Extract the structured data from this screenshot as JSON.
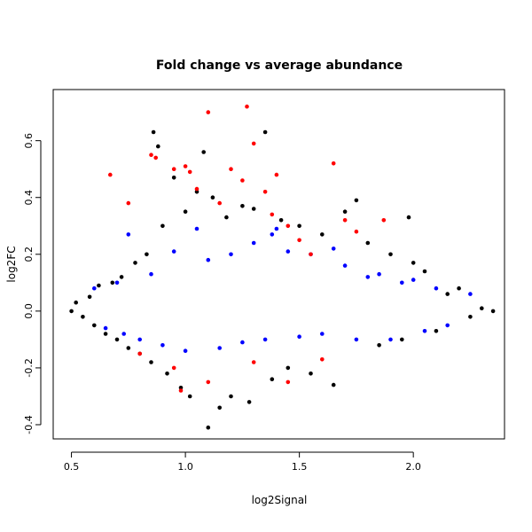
{
  "chart_data": {
    "type": "scatter",
    "title": "Fold change vs average abundance",
    "xlabel": "log2Signal",
    "ylabel": "log2FC",
    "xlim": [
      0.42,
      2.4
    ],
    "ylim": [
      -0.45,
      0.78
    ],
    "xticks": [
      0.5,
      1.0,
      1.5,
      2.0
    ],
    "xtick_labels": [
      "0.5",
      "1.0",
      "1.5",
      "2.0"
    ],
    "yticks": [
      -0.4,
      -0.2,
      0.0,
      0.2,
      0.4,
      0.6
    ],
    "ytick_labels": [
      "-0.4",
      "-0.2",
      "0.0",
      "0.2",
      "0.4",
      "0.6"
    ],
    "grid": false,
    "legend": "none",
    "colors": {
      "black": "#000000",
      "blue": "#0000ff",
      "red": "#ff0000"
    },
    "series": [
      {
        "color": "#000000",
        "points": [
          [
            0.5,
            0.0
          ],
          [
            0.52,
            0.03
          ],
          [
            0.55,
            -0.02
          ],
          [
            0.58,
            0.05
          ],
          [
            0.6,
            -0.05
          ],
          [
            0.62,
            0.09
          ],
          [
            0.65,
            -0.08
          ],
          [
            0.68,
            0.1
          ],
          [
            0.7,
            -0.1
          ],
          [
            0.72,
            0.12
          ],
          [
            0.75,
            -0.13
          ],
          [
            0.78,
            0.17
          ],
          [
            0.8,
            -0.15
          ],
          [
            0.83,
            0.2
          ],
          [
            0.85,
            -0.18
          ],
          [
            0.86,
            0.63
          ],
          [
            0.88,
            0.58
          ],
          [
            0.9,
            0.3
          ],
          [
            0.92,
            -0.22
          ],
          [
            0.95,
            0.47
          ],
          [
            0.98,
            -0.27
          ],
          [
            1.0,
            0.35
          ],
          [
            1.02,
            -0.3
          ],
          [
            1.05,
            0.42
          ],
          [
            1.08,
            0.56
          ],
          [
            1.1,
            -0.41
          ],
          [
            1.12,
            0.4
          ],
          [
            1.15,
            -0.34
          ],
          [
            1.18,
            0.33
          ],
          [
            1.2,
            -0.3
          ],
          [
            1.25,
            0.37
          ],
          [
            1.28,
            -0.32
          ],
          [
            1.3,
            0.36
          ],
          [
            1.35,
            0.63
          ],
          [
            1.38,
            -0.24
          ],
          [
            1.42,
            0.32
          ],
          [
            1.45,
            -0.2
          ],
          [
            1.5,
            0.3
          ],
          [
            1.55,
            -0.22
          ],
          [
            1.6,
            0.27
          ],
          [
            1.65,
            -0.26
          ],
          [
            1.7,
            0.35
          ],
          [
            1.75,
            0.39
          ],
          [
            1.8,
            0.24
          ],
          [
            1.85,
            -0.12
          ],
          [
            1.9,
            0.2
          ],
          [
            1.95,
            -0.1
          ],
          [
            1.98,
            0.33
          ],
          [
            2.0,
            0.17
          ],
          [
            2.05,
            0.14
          ],
          [
            2.1,
            -0.07
          ],
          [
            2.15,
            0.06
          ],
          [
            2.2,
            0.08
          ],
          [
            2.25,
            -0.02
          ],
          [
            2.3,
            0.01
          ],
          [
            2.35,
            0.0
          ]
        ]
      },
      {
        "color": "#0000ff",
        "points": [
          [
            0.6,
            0.08
          ],
          [
            0.65,
            -0.06
          ],
          [
            0.7,
            0.1
          ],
          [
            0.73,
            -0.08
          ],
          [
            0.75,
            0.27
          ],
          [
            0.8,
            -0.1
          ],
          [
            0.85,
            0.13
          ],
          [
            0.9,
            -0.12
          ],
          [
            0.95,
            0.21
          ],
          [
            1.0,
            -0.14
          ],
          [
            1.05,
            0.29
          ],
          [
            1.1,
            0.18
          ],
          [
            1.15,
            -0.13
          ],
          [
            1.2,
            0.2
          ],
          [
            1.25,
            -0.11
          ],
          [
            1.3,
            0.24
          ],
          [
            1.35,
            -0.1
          ],
          [
            1.38,
            0.27
          ],
          [
            1.4,
            0.29
          ],
          [
            1.45,
            0.21
          ],
          [
            1.5,
            -0.09
          ],
          [
            1.55,
            0.2
          ],
          [
            1.6,
            -0.08
          ],
          [
            1.65,
            0.22
          ],
          [
            1.7,
            0.16
          ],
          [
            1.75,
            -0.1
          ],
          [
            1.8,
            0.12
          ],
          [
            1.85,
            0.13
          ],
          [
            1.9,
            -0.1
          ],
          [
            1.95,
            0.1
          ],
          [
            2.0,
            0.11
          ],
          [
            2.05,
            -0.07
          ],
          [
            2.1,
            0.08
          ],
          [
            2.15,
            -0.05
          ],
          [
            2.25,
            0.06
          ]
        ]
      },
      {
        "color": "#ff0000",
        "points": [
          [
            0.67,
            0.48
          ],
          [
            0.75,
            0.38
          ],
          [
            0.8,
            -0.15
          ],
          [
            0.85,
            0.55
          ],
          [
            0.87,
            0.54
          ],
          [
            0.95,
            0.5
          ],
          [
            0.95,
            -0.2
          ],
          [
            0.98,
            -0.28
          ],
          [
            1.0,
            0.51
          ],
          [
            1.02,
            0.49
          ],
          [
            1.05,
            0.43
          ],
          [
            1.1,
            0.7
          ],
          [
            1.1,
            -0.25
          ],
          [
            1.15,
            0.38
          ],
          [
            1.2,
            0.5
          ],
          [
            1.25,
            0.46
          ],
          [
            1.27,
            0.72
          ],
          [
            1.3,
            0.59
          ],
          [
            1.3,
            -0.18
          ],
          [
            1.35,
            0.42
          ],
          [
            1.38,
            0.34
          ],
          [
            1.4,
            0.48
          ],
          [
            1.45,
            0.3
          ],
          [
            1.45,
            -0.25
          ],
          [
            1.5,
            0.25
          ],
          [
            1.55,
            0.2
          ],
          [
            1.6,
            -0.17
          ],
          [
            1.65,
            0.52
          ],
          [
            1.7,
            0.32
          ],
          [
            1.75,
            0.28
          ],
          [
            1.87,
            0.32
          ]
        ]
      }
    ]
  }
}
